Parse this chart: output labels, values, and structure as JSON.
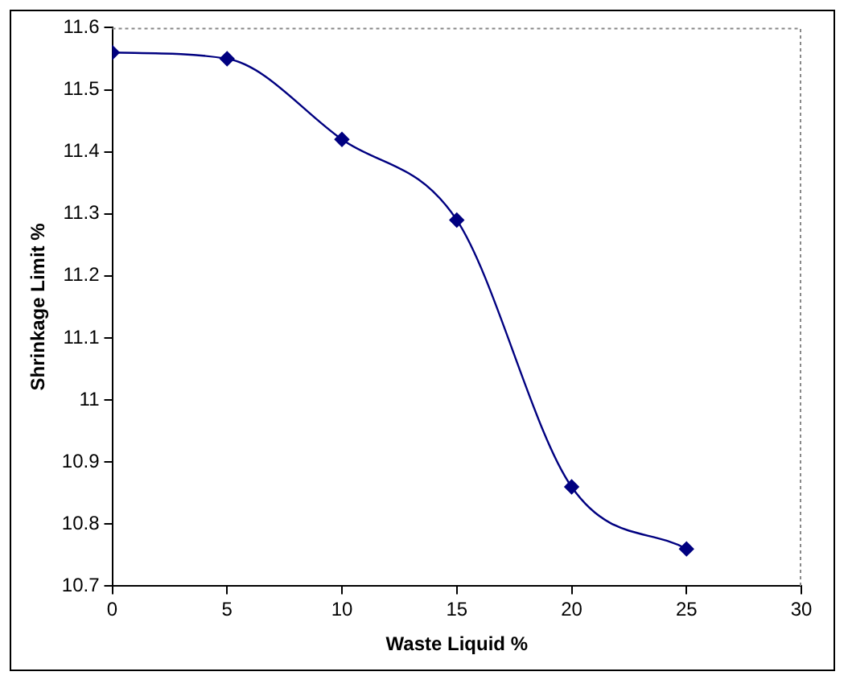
{
  "chart_data": {
    "type": "line",
    "xlabel": "Waste Liquid %",
    "ylabel": "Shrinkage Limit %",
    "x": [
      0,
      5,
      10,
      15,
      20,
      25
    ],
    "series": [
      {
        "color": "#000080",
        "values": [
          11.56,
          11.55,
          11.42,
          11.29,
          10.86,
          10.76
        ]
      }
    ],
    "xlim": [
      0,
      30
    ],
    "xticks": [
      0,
      5,
      10,
      15,
      20,
      25,
      30
    ],
    "ylim": [
      10.7,
      11.6
    ],
    "yticks": [
      10.7,
      10.8,
      10.9,
      11,
      11.1,
      11.2,
      11.3,
      11.4,
      11.5,
      11.6
    ],
    "grid": false,
    "legend": false,
    "marker": "diamond",
    "line_style": "solid"
  }
}
